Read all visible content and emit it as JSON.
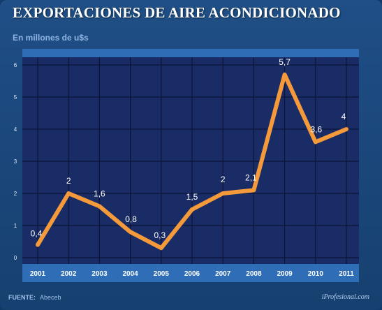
{
  "header": {
    "title": "EXPORTACIONES DE AIRE ACONDICIONADO",
    "subtitle": "En millones de u$s"
  },
  "footer": {
    "source_key": "FUENTE:",
    "source_value": "Abeceb",
    "brand": "iProfesional.com"
  },
  "colors": {
    "line": "#f59a3a",
    "plot_background": "#1a2c66",
    "grid": "#0b1436",
    "band": "#2f6db6"
  },
  "chart_data": {
    "type": "line",
    "title": "EXPORTACIONES DE AIRE ACONDICIONADO",
    "subtitle": "En millones de u$s",
    "xlabel": "",
    "ylabel": "",
    "categories": [
      "2001",
      "2002",
      "2003",
      "2004",
      "2005",
      "2006",
      "2007",
      "2008",
      "2009",
      "2010",
      "2011"
    ],
    "series": [
      {
        "values": [
          0.4,
          2,
          1.6,
          0.8,
          0.3,
          1.5,
          2,
          2.1,
          5.7,
          3.6,
          4
        ],
        "labels": [
          "0,4",
          "2",
          "1,6",
          "0,8",
          "0,3",
          "1,5",
          "2",
          "2,1",
          "5,7",
          "3,6",
          "4"
        ]
      }
    ],
    "ylim": [
      0,
      6
    ],
    "yticks": [
      "0",
      "1",
      "2",
      "3",
      "4",
      "5",
      "6"
    ],
    "grid": true,
    "legend": "none"
  }
}
